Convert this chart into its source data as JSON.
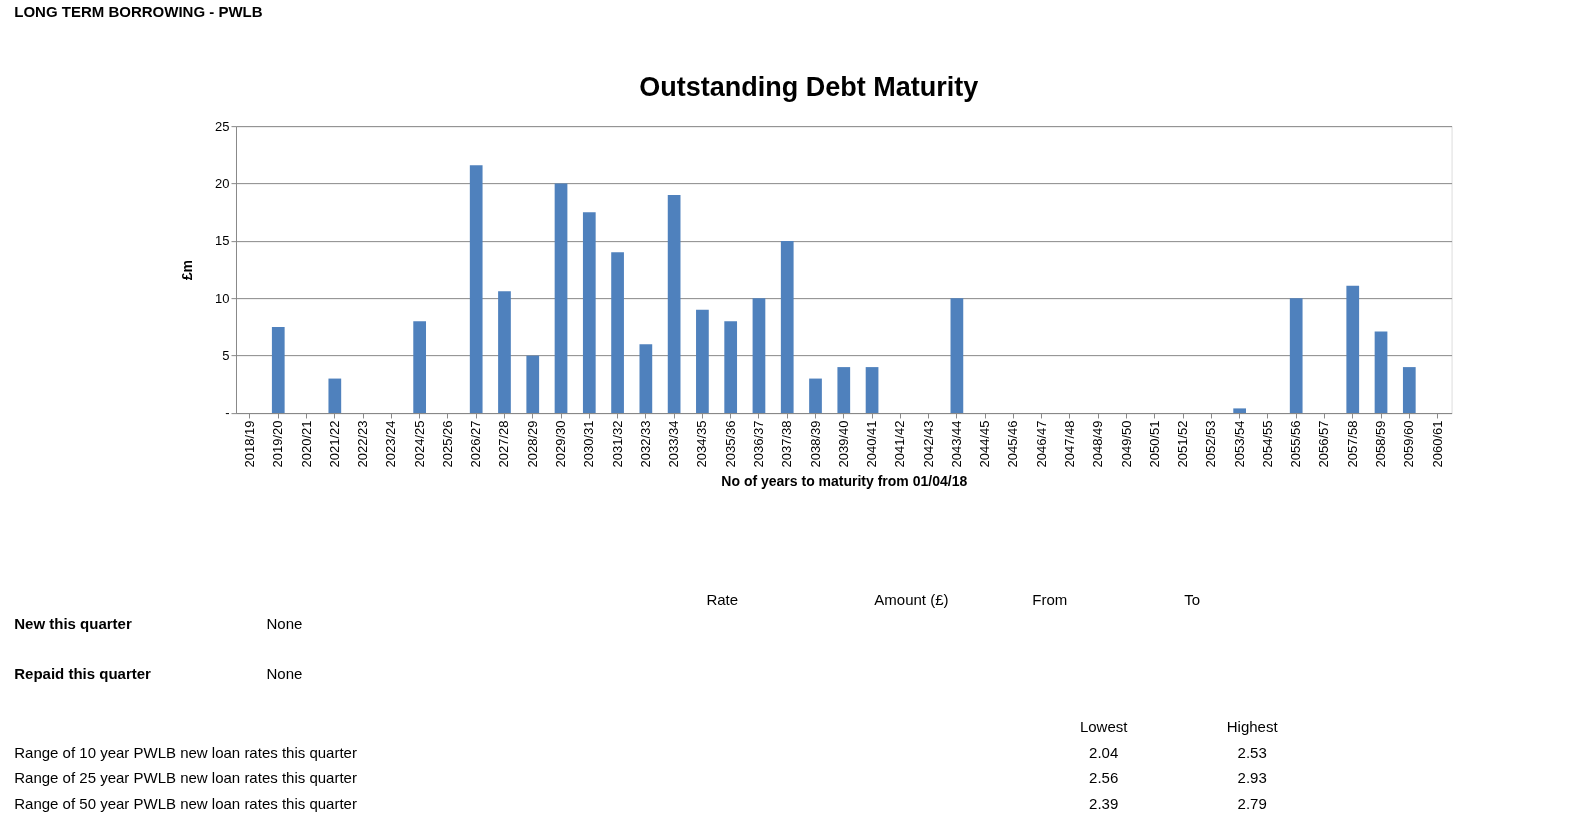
{
  "chart_data": {
    "type": "bar",
    "title": "Outstanding Debt Maturity",
    "xlabel": "No of years to maturity from 01/04/18",
    "ylabel": "£m",
    "categories": [
      "2018/19",
      "2019/20",
      "2020/21",
      "2021/22",
      "2022/23",
      "2023/24",
      "2024/25",
      "2025/26",
      "2026/27",
      "2027/28",
      "2028/29",
      "2029/30",
      "2030/31",
      "2031/32",
      "2032/33",
      "2033/34",
      "2034/35",
      "2035/36",
      "2036/37",
      "2037/38",
      "2038/39",
      "2039/40",
      "2040/41",
      "2041/42",
      "2042/43",
      "2043/44",
      "2044/45",
      "2045/46",
      "2046/47",
      "2047/48",
      "2048/49",
      "2049/50",
      "2050/51",
      "2051/52",
      "2052/53",
      "2053/54",
      "2054/55",
      "2055/56",
      "2056/57",
      "2057/58",
      "2058/59",
      "2059/60",
      "2060/61"
    ],
    "values": [
      0,
      7.5,
      0,
      3,
      0,
      0,
      8,
      0,
      21.6,
      10.6,
      5,
      20,
      17.5,
      14,
      6,
      19,
      9,
      8,
      10,
      15,
      3,
      4,
      4,
      0,
      0,
      10,
      0,
      0,
      0,
      0,
      0,
      0,
      0,
      0,
      0,
      0.4,
      0,
      10,
      0,
      11.1,
      7.1,
      4,
      0
    ],
    "color": "#4f81bd",
    "ylim": [
      0,
      25
    ],
    "yticks": [
      {
        "value": 0,
        "label": "-"
      },
      5,
      10,
      15,
      20,
      25
    ],
    "grid": "y",
    "annotations": [
      "LONG TERM BORROWING - PWLB",
      "Rate",
      "Amount (£)",
      "From",
      "To",
      "New this quarter",
      "None",
      "Repaid this quarter",
      "None",
      "Lowest",
      "Highest",
      "Range of 10 year PWLB new loan rates this quarter",
      "2.04",
      "2.53",
      "Range of 25 year PWLB new loan rates this quarter",
      "2.56",
      "2.93",
      "Range of 50 year PWLB new loan rates this quarter",
      "2.39",
      "2.79"
    ]
  }
}
